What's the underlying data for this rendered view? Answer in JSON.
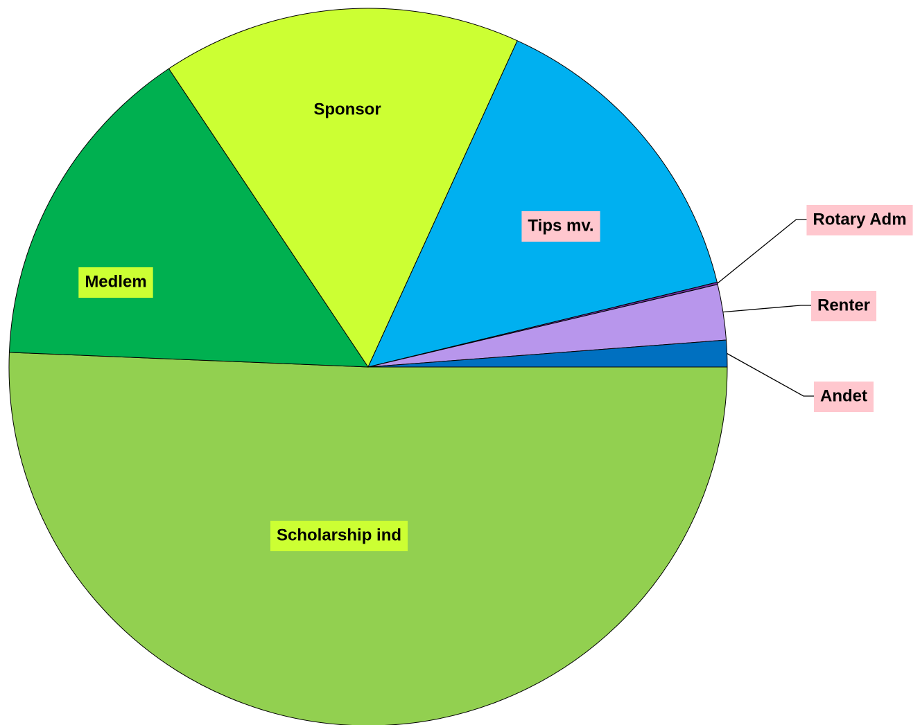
{
  "chart_data": {
    "type": "pie",
    "categories": [
      "Scholarship ind",
      "Medlem",
      "Sponsor",
      "Tips mv.",
      "Rotary Adm",
      "Renter",
      "Andet"
    ],
    "values": [
      50.7,
      15,
      16.2,
      14.4,
      0.1,
      2.5,
      1.2
    ],
    "colors": [
      "#92d050",
      "#00b050",
      "#ccff33",
      "#00b0f0",
      "#7030a0",
      "#b896ec",
      "#0070c0"
    ],
    "label_colors": [
      "#ccff33",
      "#ccff33",
      null,
      "#ffc7ce",
      "#ffc7ce",
      "#ffc7ce",
      "#ffc7ce"
    ]
  }
}
